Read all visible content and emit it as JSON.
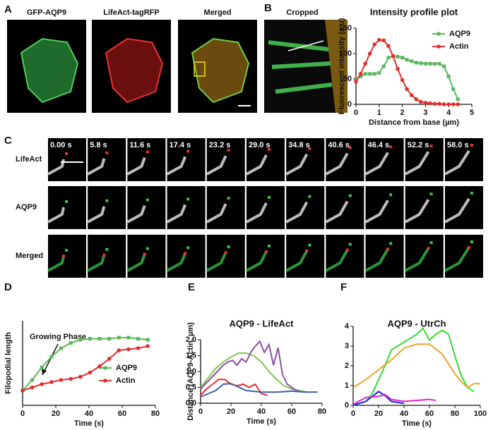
{
  "figure": {
    "panel_labels": [
      "A",
      "B",
      "C",
      "D",
      "E",
      "F"
    ],
    "image_labels": [
      "GFP-AQP9",
      "LifeAct-tagRFP",
      "Merged",
      "Cropped"
    ],
    "time_labels": [
      "0.00 s",
      "5.8 s",
      "11.6 s",
      "17.4 s",
      "23.2 s",
      "29.0 s",
      "34.8 s",
      "40.6 s",
      "46.4 s",
      "52.2 s",
      "58.0 s"
    ],
    "row_labels": [
      "LifeAct",
      "AQP9",
      "Merged"
    ]
  },
  "chart_data": [
    {
      "type": "line",
      "title": "Intensity profile plot",
      "x_label": "Distance from base (µm)",
      "y_label": "Fluorescent intensity (a.u)",
      "x": [
        0,
        0.2,
        0.4,
        0.6,
        0.8,
        1.0,
        1.2,
        1.4,
        1.6,
        1.8,
        2.0,
        2.2,
        2.4,
        2.6,
        2.8,
        3.0,
        3.2,
        3.4,
        3.6,
        3.8,
        4.0,
        4.2,
        4.4
      ],
      "series": [
        {
          "name": "AQP9",
          "color": "#5cb85c",
          "marker": "square",
          "values": [
            50,
            55,
            60,
            60,
            60,
            62,
            75,
            92,
            95,
            94,
            92,
            88,
            85,
            82,
            81,
            80,
            80,
            80,
            80,
            75,
            55,
            30,
            10
          ]
        },
        {
          "name": "Actin",
          "color": "#e03030",
          "marker": "circle",
          "values": [
            45,
            60,
            80,
            100,
            118,
            127,
            126,
            115,
            95,
            70,
            48,
            30,
            18,
            10,
            5,
            3,
            2,
            1,
            1,
            0,
            0,
            0,
            0
          ]
        }
      ],
      "xlim": [
        0,
        5
      ],
      "xticks": [
        0,
        1,
        2,
        3,
        4,
        5
      ],
      "ylim": [
        0,
        150
      ],
      "yticks": [
        0,
        50,
        100,
        150
      ],
      "legend": "top-right"
    },
    {
      "type": "line",
      "x_label": "Time (s)",
      "y_label": "Filopodial length",
      "annotation": "Growing Phase",
      "x": [
        0,
        5.8,
        11.6,
        17.4,
        23.2,
        29.0,
        34.8,
        40.6,
        46.4,
        52.2,
        58.0,
        63.8,
        69.6,
        75.4
      ],
      "series": [
        {
          "name": "AQP9",
          "color": "#5cb85c",
          "marker": "square",
          "values": [
            0.7,
            1.2,
            1.8,
            2.3,
            2.7,
            2.95,
            3.1,
            3.15,
            3.15,
            3.15,
            3.2,
            3.2,
            3.15,
            3.1
          ]
        },
        {
          "name": "Actin",
          "color": "#e03030",
          "marker": "circle",
          "values": [
            0.7,
            0.85,
            1.0,
            1.1,
            1.2,
            1.25,
            1.35,
            1.55,
            1.85,
            2.2,
            2.6,
            2.65,
            2.7,
            2.8
          ]
        }
      ],
      "xlim": [
        0,
        80
      ],
      "xticks": [
        0,
        20,
        40,
        60,
        80
      ],
      "ylim": [
        0,
        4
      ],
      "legend": "bottom-right"
    },
    {
      "type": "line",
      "title": "AQP9 - LifeAct",
      "x_label": "Time (s)",
      "y_label": "Distance (AQP9-Actin, µm)",
      "series": [
        {
          "color": "#7fc650",
          "x": [
            0,
            5,
            10,
            15,
            20,
            25,
            30,
            35,
            40,
            45,
            50,
            55,
            60,
            65,
            70
          ],
          "values": [
            0.5,
            0.8,
            1.1,
            1.3,
            1.45,
            1.58,
            1.58,
            1.5,
            1.3,
            1.0,
            0.75,
            0.55,
            0.45,
            0.4,
            0.35
          ]
        },
        {
          "color": "#8e4fa8",
          "x": [
            0,
            3,
            6,
            9,
            12,
            15,
            18,
            21,
            24,
            27,
            30,
            33,
            36,
            39,
            42,
            45,
            48,
            51,
            54,
            57,
            60,
            63,
            66
          ],
          "values": [
            0.45,
            0.6,
            0.75,
            0.9,
            1.05,
            1.2,
            1.3,
            1.35,
            1.2,
            1.4,
            1.3,
            1.6,
            1.8,
            1.95,
            1.6,
            1.85,
            1.2,
            1.75,
            0.9,
            0.6,
            0.5,
            0.4,
            0.35
          ]
        },
        {
          "color": "#e03030",
          "x": [
            0,
            4,
            8,
            12,
            16,
            20,
            24,
            28,
            32,
            36,
            40,
            44
          ],
          "values": [
            0.25,
            0.45,
            0.6,
            0.75,
            0.75,
            0.6,
            0.55,
            0.6,
            0.5,
            0.6,
            0.3,
            0.25
          ]
        },
        {
          "color": "#3a5fa8",
          "x": [
            0,
            10,
            15,
            20,
            30,
            40,
            50,
            60,
            70,
            77
          ],
          "values": [
            0.2,
            0.4,
            0.6,
            0.62,
            0.4,
            0.35,
            0.35,
            0.38,
            0.35,
            0.35
          ]
        }
      ],
      "xlim": [
        0,
        80
      ],
      "xticks": [
        0,
        20,
        40,
        60,
        80
      ],
      "ylim": [
        0,
        2
      ],
      "yticks": [
        {
          "value": 0,
          "label": "0.0"
        },
        {
          "value": 0.5,
          "label": "0.5"
        },
        {
          "value": 1,
          "label": "1.0"
        },
        {
          "value": 1.5,
          "label": "1.5"
        },
        {
          "value": 2,
          "label": "2.0"
        }
      ]
    },
    {
      "type": "line",
      "title": "AQP9 - UtrCh",
      "x_label": "Time (s)",
      "series": [
        {
          "color": "#33dd33",
          "x": [
            0,
            5,
            10,
            15,
            20,
            25,
            30,
            35,
            40,
            45,
            50,
            55,
            60,
            65,
            70,
            75,
            80,
            85,
            90,
            95
          ],
          "values": [
            0,
            0.1,
            0.2,
            0.6,
            1.3,
            2.0,
            2.8,
            3.0,
            3.2,
            3.4,
            3.6,
            3.9,
            3.3,
            3.6,
            3.8,
            3.6,
            2.5,
            1.5,
            0.9,
            0.7
          ]
        },
        {
          "color": "#f0a030",
          "x": [
            0,
            10,
            20,
            30,
            40,
            50,
            60,
            70,
            80,
            85,
            90,
            95,
            100
          ],
          "values": [
            0.9,
            1.3,
            1.8,
            2.3,
            2.9,
            3.1,
            3.1,
            2.6,
            1.6,
            1.2,
            0.9,
            1.1,
            1.1
          ]
        },
        {
          "color": "#2222cc",
          "x": [
            0,
            10,
            20,
            25,
            30,
            40
          ],
          "values": [
            0,
            0.2,
            0.7,
            0.5,
            0.2,
            0.1
          ]
        },
        {
          "color": "#e020d0",
          "x": [
            0,
            10,
            20,
            25,
            30,
            40,
            50,
            60,
            65
          ],
          "values": [
            0.05,
            0.4,
            0.45,
            0.55,
            0.3,
            0.2,
            0.25,
            0.3,
            0.25
          ]
        }
      ],
      "xlim": [
        0,
        100
      ],
      "xticks": [
        0,
        20,
        40,
        60,
        80,
        100
      ],
      "ylim": [
        0,
        4
      ],
      "yticks": [
        0,
        1,
        2,
        3,
        4
      ]
    }
  ]
}
